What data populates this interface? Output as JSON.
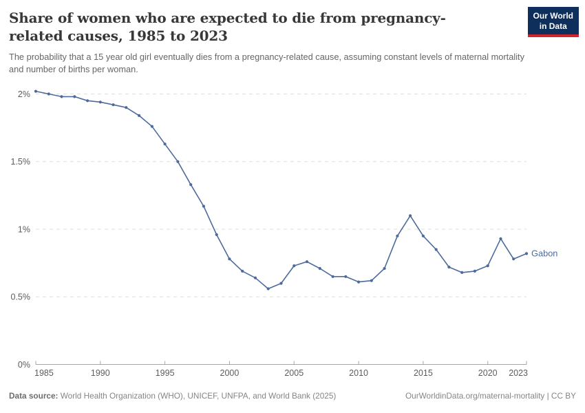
{
  "header": {
    "logo": {
      "line1": "Our World",
      "line2": "in Data",
      "bg_color": "#0e2f5c",
      "accent_color": "#cf2430"
    }
  },
  "chart_data": {
    "type": "line",
    "title": "Share of women who are expected to die from pregnancy-related causes, 1985 to 2023",
    "subtitle": "The probability that a 15 year old girl eventually dies from a pregnancy-related cause, assuming constant levels of maternal mortality and number of births per woman.",
    "xlabel": "",
    "ylabel": "",
    "x": [
      1985,
      1986,
      1987,
      1988,
      1989,
      1990,
      1991,
      1992,
      1993,
      1994,
      1995,
      1996,
      1997,
      1998,
      1999,
      2000,
      2001,
      2002,
      2003,
      2004,
      2005,
      2006,
      2007,
      2008,
      2009,
      2010,
      2011,
      2012,
      2013,
      2014,
      2015,
      2016,
      2017,
      2018,
      2019,
      2020,
      2021,
      2022,
      2023
    ],
    "series": [
      {
        "name": "Gabon",
        "color": "#4c6a9c",
        "values": [
          2.02,
          2.0,
          1.98,
          1.98,
          1.95,
          1.94,
          1.92,
          1.9,
          1.84,
          1.76,
          1.63,
          1.5,
          1.33,
          1.17,
          0.96,
          0.78,
          0.69,
          0.64,
          0.56,
          0.6,
          0.73,
          0.76,
          0.71,
          0.65,
          0.65,
          0.61,
          0.62,
          0.71,
          0.95,
          1.1,
          0.95,
          0.85,
          0.72,
          0.68,
          0.69,
          0.73,
          0.93,
          0.78,
          0.82
        ]
      }
    ],
    "x_ticks": [
      1985,
      1990,
      1995,
      2000,
      2005,
      2010,
      2015,
      2020,
      2023
    ],
    "y_ticks": [
      {
        "value": 0,
        "label": "0%"
      },
      {
        "value": 0.5,
        "label": "0.5%"
      },
      {
        "value": 1,
        "label": "1%"
      },
      {
        "value": 1.5,
        "label": "1.5%"
      },
      {
        "value": 2,
        "label": "2%"
      }
    ],
    "xlim": [
      1985,
      2023
    ],
    "ylim": [
      0,
      2.05
    ],
    "grid": "horizontal-dashed",
    "legend": "line-end-label",
    "colors": {
      "line": "#4c6a9c",
      "gridline": "#dedede",
      "axis": "#a5a5a5",
      "tick_label": "#5b5b5b"
    }
  },
  "footer": {
    "data_source_label": "Data source:",
    "data_source_text": "World Health Organization (WHO), UNICEF, UNFPA, and World Bank (2025)",
    "link_text": "OurWorldinData.org/maternal-mortality | CC BY"
  }
}
